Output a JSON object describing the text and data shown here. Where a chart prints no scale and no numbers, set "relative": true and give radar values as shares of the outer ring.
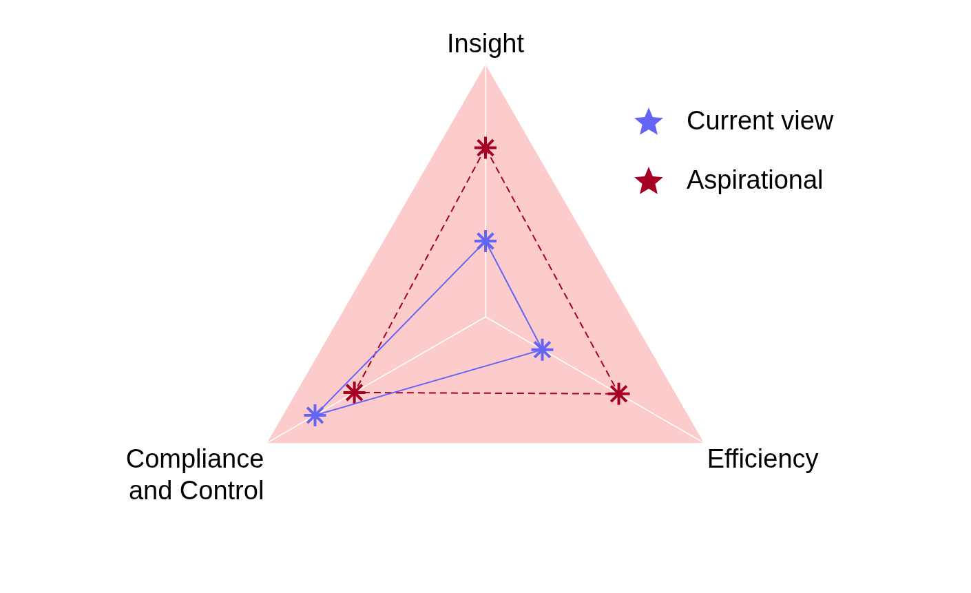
{
  "chart_data": {
    "type": "radar",
    "relative": true,
    "categories": [
      "Insight",
      "Efficiency",
      "Compliance\nand Control"
    ],
    "series": [
      {
        "name": "Current view",
        "color": "#6464f5",
        "values": [
          0.3,
          0.26,
          0.78
        ],
        "line_style": "solid"
      },
      {
        "name": "Aspirational",
        "color": "#a50021",
        "values": [
          0.67,
          0.61,
          0.6
        ],
        "line_style": "dashed"
      }
    ],
    "marker": "star",
    "legend": "top right"
  }
}
